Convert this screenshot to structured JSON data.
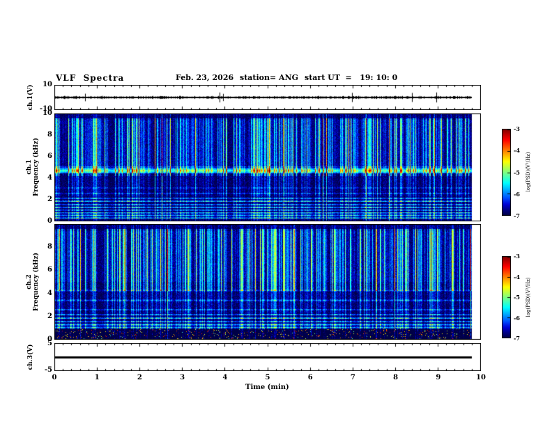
{
  "header": {
    "title": "VLF  Spectra",
    "date": "Feb. 23, 2026",
    "station": "station= ANG",
    "start_ut": "start UT  =   19: 10: 0"
  },
  "panels": {
    "ch1v": {
      "label": "ch.1(V)",
      "ytop": "10",
      "ybottom": "-10"
    },
    "ch1": {
      "channel": "ch.1",
      "ylabel": "Frequency (kHz)"
    },
    "ch2": {
      "channel": "ch.2",
      "ylabel": "Frequency (kHz)"
    },
    "ch3v": {
      "label": "ch.3(V)",
      "ytop": "5",
      "ybottom": "-5"
    }
  },
  "xaxis": {
    "label": "Time (min)",
    "ticks": [
      "0",
      "1",
      "2",
      "3",
      "4",
      "5",
      "6",
      "7",
      "8",
      "9",
      "10"
    ]
  },
  "colorbar": {
    "label": "log(PSD)(V²/Hz)",
    "ticks": [
      "-3",
      "-4",
      "-5",
      "-6",
      "-7"
    ]
  },
  "chart_data": [
    {
      "type": "line",
      "name": "ch1_voltage_waveform",
      "xlabel": "Time (min)",
      "xlim": [
        0,
        10
      ],
      "ylabel": "ch.1(V)",
      "ylim": [
        -10,
        10
      ],
      "description": "broadband noise waveform centered on 0 V, typical amplitude about ±1 V with occasional spikes to about ±4 V",
      "mean_v": 0,
      "noise_amplitude_v": 1.0,
      "spike_amplitude_v": 4,
      "data_end_min": 9.8
    },
    {
      "type": "heatmap",
      "name": "ch1_spectrogram",
      "xlabel": "Time (min)",
      "xlim": [
        0,
        10
      ],
      "ylabel": "Frequency (kHz)",
      "ylim": [
        0,
        10
      ],
      "zlabel": "log(PSD)(V²/Hz)",
      "zlim": [
        -7,
        -3
      ],
      "colormap": "jet",
      "yticks": [
        0,
        2,
        4,
        6,
        8,
        10
      ],
      "background_level": -6.95,
      "sferic_streaks": "dense vertical broadband impulses spanning 0-10 kHz, strongest 4-9.5 kHz, reaching -4 to -3",
      "line_freqs_khz": [
        0.3,
        0.55,
        0.8,
        1.05,
        1.3,
        1.55,
        1.85,
        2.15,
        2.6,
        3.1,
        5.05
      ],
      "line_amps": [
        1.6,
        1.4,
        1.5,
        1.3,
        1.5,
        1.3,
        1.6,
        1.2,
        0.7,
        0.5,
        0.8
      ],
      "bright_band_khz": [
        4.45,
        4.95
      ],
      "bright_band_amp": 1.8,
      "speckle_band_khz": null,
      "data_end_min": 9.8
    },
    {
      "type": "heatmap",
      "name": "ch2_spectrogram",
      "xlabel": "Time (min)",
      "xlim": [
        0,
        10
      ],
      "ylabel": "Frequency (kHz)",
      "ylim": [
        0,
        10
      ],
      "zlabel": "log(PSD)(V²/Hz)",
      "zlim": [
        -7,
        -3
      ],
      "colormap": "jet",
      "yticks": [
        0,
        2,
        4,
        6,
        8
      ],
      "background_level": -6.95,
      "sferic_streaks": "dense vertical broadband impulses spanning 0-10 kHz, strongest 4-9.5 kHz, reaching -4 to -3",
      "line_freqs_khz": [
        1.05,
        1.3,
        1.55,
        1.85,
        2.15,
        2.6,
        3.4,
        4.25
      ],
      "line_amps": [
        1.4,
        1.5,
        1.3,
        1.6,
        1.2,
        0.8,
        0.8,
        0.6
      ],
      "bright_band_khz": null,
      "bright_band_amp": 0,
      "speckle_band_khz": [
        0,
        0.95
      ],
      "data_end_min": 9.8
    },
    {
      "type": "line",
      "name": "ch3_voltage_waveform",
      "xlabel": "Time (min)",
      "xlim": [
        0,
        10
      ],
      "ylabel": "ch.3(V)",
      "ylim": [
        -5,
        5
      ],
      "description": "flat line at 0 V (no signal on channel 3)",
      "mean_v": 0,
      "noise_amplitude_v": 0,
      "data_end_min": 9.8
    }
  ]
}
